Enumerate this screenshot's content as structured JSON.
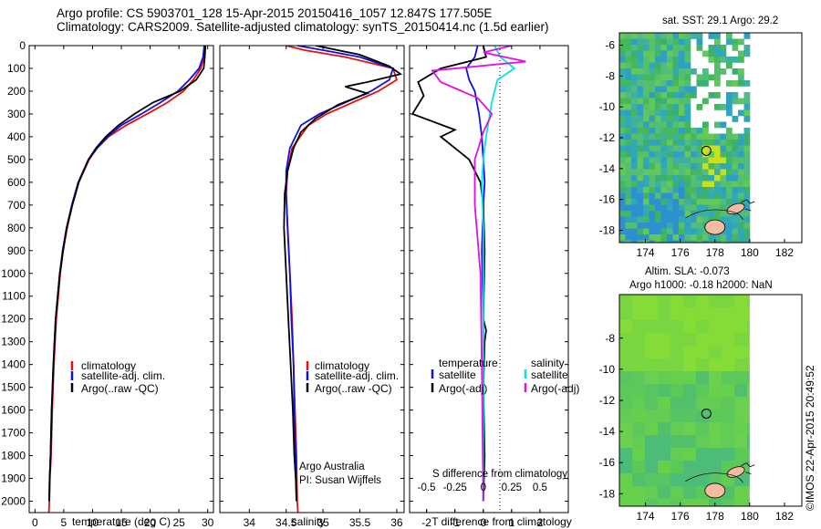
{
  "header": {
    "line1": "Argo profile: CS 5903701_128 15-Apr-2015 20150416_1057 12.847S 177.505E",
    "line2": "Climatology: CARS2009. Satellite-adjusted climatology: synTS_20150414.nc (1.5d earlier)"
  },
  "credit": "©IMOS 22-Apr-2015 20:49:52",
  "colors": {
    "climatology": "#e01010",
    "satellite": "#1010e0",
    "argo": "#000000",
    "satellite_salinity": "#00e5e5",
    "argo_salinity_adj": "#e010e0",
    "land": "#f5bba0"
  },
  "chart_data": [
    {
      "type": "line",
      "id": "temperature",
      "xlabel": "temperature (deg C)",
      "xlim": [
        -1,
        31
      ],
      "ylim": [
        2050,
        0
      ],
      "xticks": [
        "0",
        "5",
        "10",
        "15",
        "20",
        "25",
        "30"
      ],
      "yticks": [
        "0",
        "100",
        "200",
        "300",
        "400",
        "500",
        "600",
        "700",
        "800",
        "900",
        "1000",
        "1100",
        "1200",
        "1300",
        "1400",
        "1500",
        "1600",
        "1700",
        "1800",
        "1900",
        "2000"
      ],
      "legend": [
        "climatology",
        "satellite-adj. clim.",
        "Argo(..raw -QC)"
      ],
      "series": [
        {
          "name": "climatology",
          "color": "#e01010",
          "x": [
            29.6,
            29.4,
            28.8,
            27.5,
            25.8,
            23.0,
            19.5,
            15.8,
            12.8,
            10.8,
            9.4,
            7.6,
            6.5,
            5.6,
            4.9,
            4.4,
            3.7,
            3.3,
            3.0,
            2.8,
            2.6,
            2.5,
            2.45,
            2.4
          ],
          "y": [
            0,
            50,
            100,
            150,
            200,
            250,
            300,
            350,
            400,
            450,
            500,
            600,
            700,
            800,
            900,
            1000,
            1200,
            1400,
            1600,
            1800,
            1900,
            2000,
            2030,
            2050
          ]
        },
        {
          "name": "satellite-adj. clim.",
          "color": "#1010e0",
          "x": [
            29.4,
            29.2,
            28.5,
            26.8,
            24.8,
            21.8,
            18.5,
            15.0,
            12.6,
            10.8,
            9.3,
            7.5,
            6.4,
            5.5,
            4.8,
            4.3,
            3.6,
            3.2,
            2.9,
            2.7,
            2.55,
            2.45
          ],
          "y": [
            0,
            50,
            100,
            150,
            200,
            250,
            300,
            350,
            400,
            450,
            500,
            600,
            700,
            800,
            900,
            1000,
            1200,
            1400,
            1600,
            1800,
            1900,
            2000
          ]
        },
        {
          "name": "Argo(..raw -QC)",
          "color": "#000000",
          "x": [
            29.6,
            29.5,
            29.3,
            28.0,
            25.2,
            20.5,
            17.3,
            14.5,
            12.3,
            10.6,
            9.3,
            7.6,
            6.5,
            5.5,
            4.9,
            4.3,
            3.6,
            3.2,
            2.9,
            2.7,
            2.55,
            2.5
          ],
          "y": [
            0,
            50,
            100,
            150,
            200,
            250,
            300,
            350,
            400,
            450,
            500,
            600,
            700,
            800,
            900,
            1000,
            1200,
            1400,
            1600,
            1800,
            1900,
            2000
          ]
        }
      ]
    },
    {
      "type": "line",
      "id": "salinity",
      "xlabel": "salinity",
      "xlim": [
        33.6,
        36.1
      ],
      "ylim": [
        2050,
        0
      ],
      "xticks": [
        "34",
        "34.5",
        "35",
        "35.5",
        "36"
      ],
      "legend": [
        "climatology",
        "satellite-adj. clim.",
        "Argo(..raw -QC)"
      ],
      "annotation": [
        "Argo Australia",
        "PI: Susan Wijffels"
      ],
      "series": [
        {
          "name": "climatology",
          "color": "#e01010",
          "x": [
            34.5,
            34.75,
            35.3,
            35.95,
            36.0,
            35.75,
            35.4,
            35.05,
            34.8,
            34.58,
            34.52,
            34.5,
            34.52,
            34.55,
            34.58,
            34.6,
            34.62,
            34.64,
            34.65,
            34.66
          ],
          "y": [
            0,
            20,
            50,
            100,
            150,
            200,
            250,
            300,
            350,
            450,
            550,
            650,
            800,
            1000,
            1200,
            1400,
            1600,
            1800,
            2000,
            2050
          ]
        },
        {
          "name": "satellite-adj. clim.",
          "color": "#1010e0",
          "x": [
            34.65,
            35.0,
            35.5,
            35.95,
            35.9,
            35.65,
            35.3,
            34.95,
            34.7,
            34.55,
            34.5,
            34.5,
            34.52,
            34.55,
            34.57,
            34.6,
            34.61,
            34.63,
            34.64
          ],
          "y": [
            0,
            20,
            50,
            100,
            150,
            200,
            250,
            300,
            350,
            450,
            550,
            650,
            800,
            1000,
            1200,
            1400,
            1600,
            1800,
            2000
          ]
        },
        {
          "name": "Argo(..raw -QC)",
          "color": "#000000",
          "x": [
            34.9,
            35.5,
            35.9,
            36.05,
            35.6,
            35.3,
            35.6,
            35.2,
            34.9,
            34.7,
            34.6,
            34.52,
            34.48,
            34.47,
            34.5,
            34.53,
            34.56,
            34.59,
            34.61,
            34.63,
            34.64
          ],
          "y": [
            0,
            40,
            90,
            125,
            160,
            180,
            210,
            260,
            320,
            380,
            450,
            550,
            650,
            800,
            1000,
            1200,
            1400,
            1600,
            1800,
            1900,
            2000
          ]
        }
      ]
    },
    {
      "type": "line",
      "id": "difference",
      "xlabel": "T difference from climatology",
      "xlabel_top": "S difference from climatology",
      "xlim": [
        -2.6,
        3.0
      ],
      "ylim": [
        2050,
        0
      ],
      "xticks": [
        "-2",
        "-1",
        "0",
        "1",
        "2"
      ],
      "xticks_top": [
        "-0.5",
        "-0.25",
        "0",
        "0.25",
        "0.5"
      ],
      "legend_temperature": [
        "temperature",
        "satellite",
        "Argo(-adj)"
      ],
      "legend_salinity": [
        "salinity",
        "satellite",
        "Argo(-adj)"
      ],
      "series": [
        {
          "name": "satellite",
          "group": "temperature",
          "color": "#1010e0",
          "x": [
            -0.2,
            -0.3,
            -0.6,
            -0.5,
            -0.3,
            -0.15,
            -0.05,
            0.0,
            0.05,
            0.0,
            -0.05,
            0.0,
            0.0,
            0.0,
            0.0
          ],
          "y": [
            0,
            50,
            100,
            150,
            200,
            300,
            400,
            500,
            600,
            700,
            900,
            1200,
            1500,
            1800,
            2000
          ]
        },
        {
          "name": "Argo(-adj)",
          "group": "temperature",
          "color": "#000000",
          "x": [
            0.0,
            0.1,
            -1.5,
            -2.3,
            -2.1,
            -2.5,
            -1.0,
            -1.5,
            -0.5,
            -0.1,
            0.0,
            0.05,
            0.0,
            0.1,
            0.05,
            0.0,
            0.05,
            0.0
          ],
          "y": [
            0,
            50,
            100,
            160,
            220,
            300,
            370,
            400,
            500,
            600,
            700,
            900,
            1200,
            1250,
            1300,
            1500,
            1800,
            2000
          ]
        },
        {
          "name": "satellite",
          "group": "salinity",
          "color": "#00e5e5",
          "x": [
            0.4,
            0.6,
            1.1,
            0.5,
            0.3,
            0.1,
            0.0,
            -0.05,
            0.0,
            0.0,
            0.0,
            0.0
          ],
          "y": [
            0,
            50,
            100,
            150,
            250,
            400,
            500,
            600,
            800,
            1200,
            1600,
            2000
          ]
        },
        {
          "name": "Argo(-adj)",
          "group": "salinity",
          "color": "#e010e0",
          "x": [
            1.0,
            0.0,
            1.5,
            -1.8,
            -1.5,
            -0.2,
            0.3,
            0.0,
            -0.3,
            -0.3,
            -0.1,
            -0.05,
            0.0
          ],
          "y": [
            0,
            30,
            70,
            110,
            160,
            230,
            300,
            380,
            500,
            700,
            1000,
            1400,
            2000
          ]
        }
      ]
    },
    {
      "type": "heatmap",
      "id": "sst-map",
      "title": "sat. SST: 29.1  Argo: 29.2",
      "xlim": [
        172.5,
        183.0
      ],
      "ylim": [
        -18.8,
        -5.2
      ],
      "xticks": [
        "174",
        "176",
        "178",
        "180",
        "182"
      ],
      "yticks": [
        "-6",
        "-8",
        "-10",
        "-12",
        "-14",
        "-16",
        "-18"
      ],
      "marker": {
        "lon": 177.505,
        "lat": -12.847
      }
    },
    {
      "type": "heatmap",
      "id": "sla-map",
      "title_line1": "Altim. SLA: -0.073",
      "title_line2": "Argo h1000: -0.18  h2000: NaN",
      "xlim": [
        172.5,
        183.0
      ],
      "ylim": [
        -18.8,
        -5.2
      ],
      "xticks": [
        "174",
        "176",
        "178",
        "180",
        "182"
      ],
      "yticks": [
        "-8",
        "-10",
        "-12",
        "-14",
        "-16",
        "-18"
      ],
      "marker": {
        "lon": 177.505,
        "lat": -12.847
      }
    }
  ]
}
